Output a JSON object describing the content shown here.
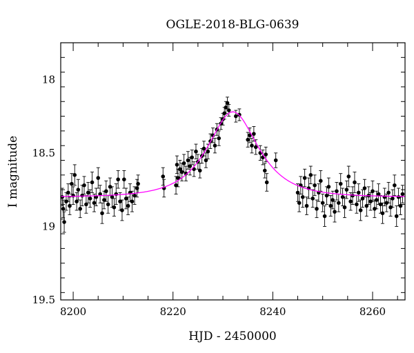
{
  "chart_data": {
    "type": "scatter",
    "title": "OGLE-2018-BLG-0639",
    "xlabel": "HJD - 2450000",
    "ylabel": "I magnitude",
    "xlim": [
      8197.5,
      8266.5
    ],
    "ylim": [
      19.5,
      17.75
    ],
    "y_inverted": true,
    "xticks": [
      "8200",
      "8220",
      "8240",
      "8260"
    ],
    "xtick_values": [
      8200,
      8220,
      8240,
      8260
    ],
    "yticks": [
      "18",
      "18.5",
      "19",
      "19.5"
    ],
    "ytick_values": [
      18,
      18.5,
      19,
      19.5
    ],
    "grid": false,
    "legend": "none",
    "model_color": "#ff00ff",
    "point_color": "#000000",
    "model": {
      "name": "",
      "t0": 8232.0,
      "peak_mag": 18.22,
      "baseline_mag": 18.8,
      "tE": 7.5
    },
    "series": [
      {
        "name": "",
        "points": [
          [
            8197.8,
            18.8,
            0.06
          ],
          [
            8198.0,
            18.88,
            0.06
          ],
          [
            8198.2,
            18.97,
            0.07
          ],
          [
            8198.6,
            18.83,
            0.06
          ],
          [
            8199.0,
            18.77,
            0.06
          ],
          [
            8199.3,
            18.86,
            0.06
          ],
          [
            8199.7,
            18.71,
            0.07
          ],
          [
            8200.0,
            18.79,
            0.06
          ],
          [
            8200.3,
            18.65,
            0.07
          ],
          [
            8200.7,
            18.83,
            0.06
          ],
          [
            8201.0,
            18.75,
            0.07
          ],
          [
            8201.4,
            18.88,
            0.06
          ],
          [
            8201.8,
            18.79,
            0.07
          ],
          [
            8202.2,
            18.72,
            0.06
          ],
          [
            8202.6,
            18.85,
            0.06
          ],
          [
            8203.0,
            18.77,
            0.07
          ],
          [
            8203.4,
            18.81,
            0.06
          ],
          [
            8203.8,
            18.7,
            0.07
          ],
          [
            8204.2,
            18.84,
            0.06
          ],
          [
            8204.6,
            18.8,
            0.06
          ],
          [
            8205.0,
            18.67,
            0.07
          ],
          [
            8205.4,
            18.78,
            0.06
          ],
          [
            8205.8,
            18.91,
            0.07
          ],
          [
            8206.2,
            18.82,
            0.06
          ],
          [
            8206.6,
            18.76,
            0.07
          ],
          [
            8207.0,
            18.85,
            0.06
          ],
          [
            8207.4,
            18.73,
            0.06
          ],
          [
            8207.8,
            18.8,
            0.07
          ],
          [
            8208.2,
            18.87,
            0.06
          ],
          [
            8208.6,
            18.78,
            0.07
          ],
          [
            8209.0,
            18.68,
            0.06
          ],
          [
            8209.4,
            18.83,
            0.06
          ],
          [
            8209.8,
            18.89,
            0.07
          ],
          [
            8210.2,
            18.68,
            0.06
          ],
          [
            8210.6,
            18.81,
            0.07
          ],
          [
            8211.0,
            18.86,
            0.06
          ],
          [
            8211.4,
            18.77,
            0.06
          ],
          [
            8211.8,
            18.83,
            0.07
          ],
          [
            8212.3,
            18.79,
            0.06
          ],
          [
            8212.8,
            18.74,
            0.06
          ],
          [
            8213.0,
            18.71,
            0.06
          ],
          [
            8218.0,
            18.66,
            0.06
          ],
          [
            8218.2,
            18.74,
            0.06
          ],
          [
            8220.6,
            18.72,
            0.06
          ],
          [
            8220.8,
            18.58,
            0.06
          ],
          [
            8221.0,
            18.67,
            0.06
          ],
          [
            8221.4,
            18.61,
            0.06
          ],
          [
            8221.8,
            18.63,
            0.06
          ],
          [
            8222.2,
            18.57,
            0.06
          ],
          [
            8222.6,
            18.64,
            0.05
          ],
          [
            8223.0,
            18.55,
            0.06
          ],
          [
            8223.4,
            18.59,
            0.06
          ],
          [
            8223.8,
            18.53,
            0.05
          ],
          [
            8224.2,
            18.61,
            0.05
          ],
          [
            8224.6,
            18.49,
            0.05
          ],
          [
            8225.0,
            18.56,
            0.05
          ],
          [
            8225.4,
            18.62,
            0.05
          ],
          [
            8225.8,
            18.52,
            0.05
          ],
          [
            8226.2,
            18.47,
            0.05
          ],
          [
            8226.6,
            18.55,
            0.05
          ],
          [
            8227.0,
            18.49,
            0.05
          ],
          [
            8227.5,
            18.42,
            0.05
          ],
          [
            8228.0,
            18.38,
            0.05
          ],
          [
            8228.4,
            18.45,
            0.05
          ],
          [
            8228.8,
            18.34,
            0.04
          ],
          [
            8229.2,
            18.4,
            0.05
          ],
          [
            8229.6,
            18.3,
            0.04
          ],
          [
            8230.0,
            18.27,
            0.04
          ],
          [
            8230.3,
            18.23,
            0.04
          ],
          [
            8230.6,
            18.19,
            0.04
          ],
          [
            8230.9,
            18.16,
            0.04
          ],
          [
            8231.2,
            18.21,
            0.04
          ],
          [
            8232.6,
            18.25,
            0.04
          ],
          [
            8233.3,
            18.24,
            0.04
          ],
          [
            8235.0,
            18.41,
            0.05
          ],
          [
            8235.4,
            18.38,
            0.05
          ],
          [
            8235.8,
            18.45,
            0.05
          ],
          [
            8236.2,
            18.37,
            0.05
          ],
          [
            8236.6,
            18.46,
            0.05
          ],
          [
            8237.5,
            18.5,
            0.05
          ],
          [
            8238.0,
            18.53,
            0.05
          ],
          [
            8238.4,
            18.62,
            0.05
          ],
          [
            8238.6,
            18.51,
            0.05
          ],
          [
            8238.8,
            18.7,
            0.06
          ],
          [
            8240.6,
            18.55,
            0.05
          ],
          [
            8245.0,
            18.77,
            0.06
          ],
          [
            8245.3,
            18.84,
            0.06
          ],
          [
            8245.6,
            18.72,
            0.06
          ],
          [
            8246.0,
            18.8,
            0.07
          ],
          [
            8246.4,
            18.67,
            0.06
          ],
          [
            8246.8,
            18.86,
            0.06
          ],
          [
            8247.2,
            18.74,
            0.07
          ],
          [
            8247.6,
            18.65,
            0.06
          ],
          [
            8248.0,
            18.81,
            0.06
          ],
          [
            8248.4,
            18.72,
            0.07
          ],
          [
            8248.8,
            18.88,
            0.06
          ],
          [
            8249.2,
            18.77,
            0.06
          ],
          [
            8249.6,
            18.69,
            0.07
          ],
          [
            8250.0,
            18.84,
            0.06
          ],
          [
            8250.4,
            18.93,
            0.07
          ],
          [
            8250.8,
            18.79,
            0.06
          ],
          [
            8251.2,
            18.73,
            0.06
          ],
          [
            8251.6,
            18.86,
            0.07
          ],
          [
            8252.0,
            18.82,
            0.06
          ],
          [
            8252.4,
            18.9,
            0.07
          ],
          [
            8252.8,
            18.76,
            0.06
          ],
          [
            8253.2,
            18.84,
            0.06
          ],
          [
            8253.6,
            18.71,
            0.07
          ],
          [
            8254.0,
            18.8,
            0.06
          ],
          [
            8254.4,
            18.87,
            0.07
          ],
          [
            8254.8,
            18.75,
            0.06
          ],
          [
            8255.2,
            18.66,
            0.07
          ],
          [
            8255.6,
            18.83,
            0.06
          ],
          [
            8256.0,
            18.79,
            0.06
          ],
          [
            8256.4,
            18.7,
            0.07
          ],
          [
            8256.8,
            18.85,
            0.06
          ],
          [
            8257.2,
            18.77,
            0.06
          ],
          [
            8257.6,
            18.89,
            0.07
          ],
          [
            8258.0,
            18.81,
            0.06
          ],
          [
            8258.4,
            18.74,
            0.06
          ],
          [
            8258.8,
            18.86,
            0.07
          ],
          [
            8259.2,
            18.79,
            0.06
          ],
          [
            8259.6,
            18.83,
            0.06
          ],
          [
            8260.0,
            18.76,
            0.07
          ],
          [
            8260.4,
            18.88,
            0.06
          ],
          [
            8260.8,
            18.82,
            0.06
          ],
          [
            8261.2,
            18.78,
            0.07
          ],
          [
            8261.6,
            18.85,
            0.06
          ],
          [
            8262.0,
            18.91,
            0.07
          ],
          [
            8262.4,
            18.8,
            0.06
          ],
          [
            8262.8,
            18.84,
            0.06
          ],
          [
            8263.2,
            18.77,
            0.07
          ],
          [
            8263.6,
            18.87,
            0.06
          ],
          [
            8264.0,
            18.81,
            0.06
          ],
          [
            8264.4,
            18.72,
            0.07
          ],
          [
            8264.8,
            18.93,
            0.07
          ],
          [
            8265.2,
            18.8,
            0.06
          ],
          [
            8265.6,
            18.86,
            0.06
          ],
          [
            8266.0,
            18.78,
            0.06
          ]
        ]
      }
    ]
  }
}
